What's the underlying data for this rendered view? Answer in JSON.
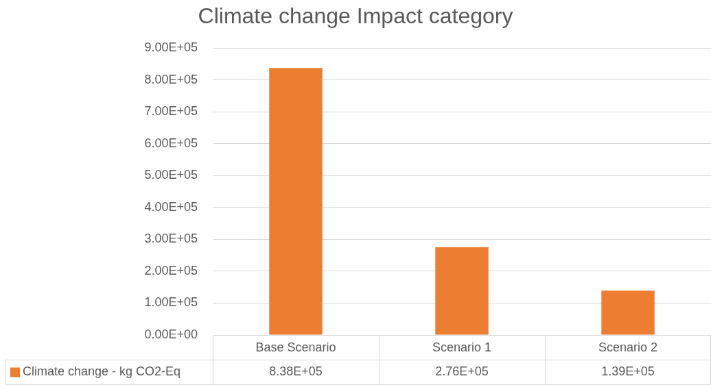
{
  "chart_data": {
    "type": "bar",
    "title": "Climate change Impact category",
    "categories": [
      "Base Scenario",
      "Scenario 1",
      "Scenario 2"
    ],
    "series": [
      {
        "name": "Climate change - kg CO2-Eq",
        "color": "#ed7d31",
        "values": [
          838000,
          276000,
          139000
        ],
        "value_labels": [
          "8.38E+05",
          "2.76E+05",
          "1.39E+05"
        ]
      }
    ],
    "ylim": [
      0,
      900000
    ],
    "yticks": [
      {
        "value": 0,
        "label": "0.00E+00"
      },
      {
        "value": 100000,
        "label": "1.00E+05"
      },
      {
        "value": 200000,
        "label": "2.00E+05"
      },
      {
        "value": 300000,
        "label": "3.00E+05"
      },
      {
        "value": 400000,
        "label": "4.00E+05"
      },
      {
        "value": 500000,
        "label": "5.00E+05"
      },
      {
        "value": 600000,
        "label": "6.00E+05"
      },
      {
        "value": 700000,
        "label": "7.00E+05"
      },
      {
        "value": 800000,
        "label": "8.00E+05"
      },
      {
        "value": 900000,
        "label": "9.00E+05"
      }
    ],
    "grid": "y",
    "legend": "bottom"
  }
}
